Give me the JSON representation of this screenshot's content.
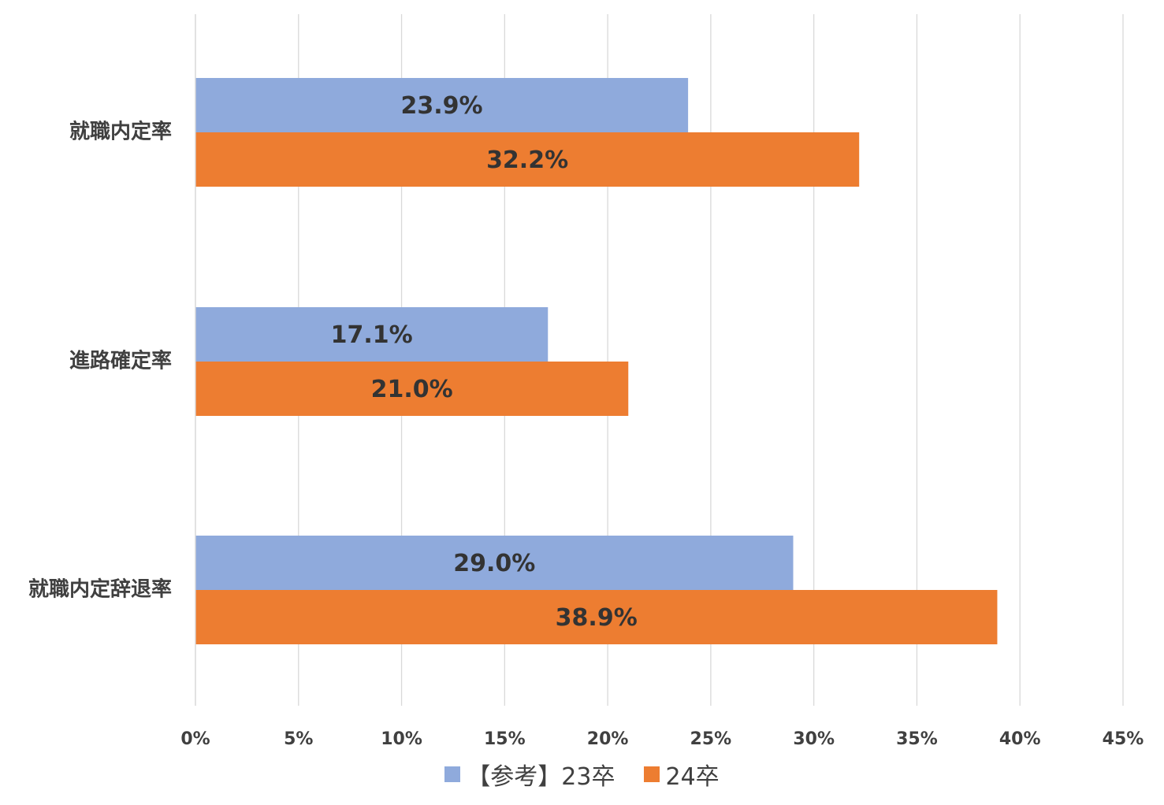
{
  "chart_data": {
    "type": "bar",
    "orientation": "horizontal",
    "title": "",
    "xlabel": "",
    "ylabel": "",
    "xlim": [
      0,
      45
    ],
    "x_ticks": [
      0,
      5,
      10,
      15,
      20,
      25,
      30,
      35,
      40,
      45
    ],
    "x_tick_labels": [
      "0%",
      "5%",
      "10%",
      "15%",
      "20%",
      "25%",
      "30%",
      "35%",
      "40%",
      "45%"
    ],
    "categories": [
      "就職内定率",
      "進路確定率",
      "就職内定辞退率"
    ],
    "series": [
      {
        "name": "【参考】23卒",
        "color": "#8faadc",
        "values": [
          23.9,
          17.1,
          29.0
        ],
        "labels": [
          "23.9%",
          "17.1%",
          "29.0%"
        ]
      },
      {
        "name": "24卒",
        "color": "#ed7d31",
        "values": [
          32.2,
          21.0,
          38.9
        ],
        "labels": [
          "32.2%",
          "21.0%",
          "38.9%"
        ]
      }
    ],
    "grid": "vertical",
    "legend": "bottom"
  },
  "colors": {
    "grid": "#d9d9d9",
    "text": "#404040",
    "label": "#333333"
  }
}
